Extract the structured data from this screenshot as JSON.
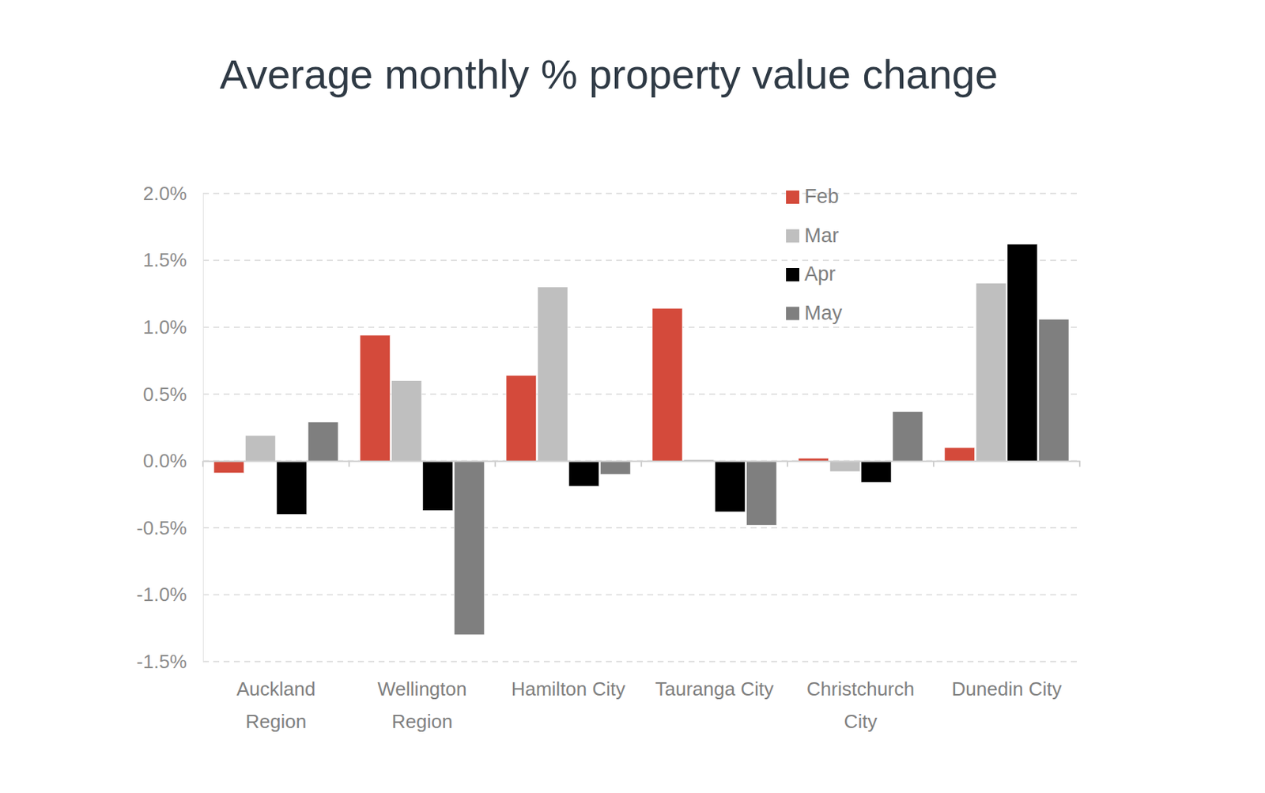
{
  "chart_data": {
    "type": "bar",
    "title": "Average monthly % property value change",
    "categories": [
      "Auckland Region",
      "Wellington Region",
      "Hamilton City",
      "Tauranga City",
      "Christchurch City",
      "Dunedin City"
    ],
    "series": [
      {
        "name": "Feb",
        "color": "#d44a3b",
        "values": [
          -0.09,
          0.94,
          0.64,
          1.14,
          0.02,
          0.1
        ]
      },
      {
        "name": "Mar",
        "color": "#bfbfbf",
        "values": [
          0.19,
          0.6,
          1.3,
          0.01,
          -0.08,
          1.33
        ]
      },
      {
        "name": "Apr",
        "color": "#000000",
        "values": [
          -0.4,
          -0.37,
          -0.19,
          -0.38,
          -0.16,
          1.62
        ]
      },
      {
        "name": "May",
        "color": "#7f7f7f",
        "values": [
          0.29,
          -1.3,
          -0.1,
          -0.48,
          0.37,
          1.06
        ]
      }
    ],
    "ylim": [
      -1.5,
      2.0
    ],
    "yticks": [
      {
        "value": -1.5,
        "label": "-1.5%"
      },
      {
        "value": -1.0,
        "label": "-1.0%"
      },
      {
        "value": -0.5,
        "label": "-0.5%"
      },
      {
        "value": 0,
        "label": "0.0%"
      },
      {
        "value": 0.5,
        "label": "0.5%"
      },
      {
        "value": 1.0,
        "label": "1.0%"
      },
      {
        "value": 1.5,
        "label": "1.5%"
      },
      {
        "value": 2.0,
        "label": "2.0%"
      }
    ],
    "grid": true,
    "legend": "top-right"
  }
}
